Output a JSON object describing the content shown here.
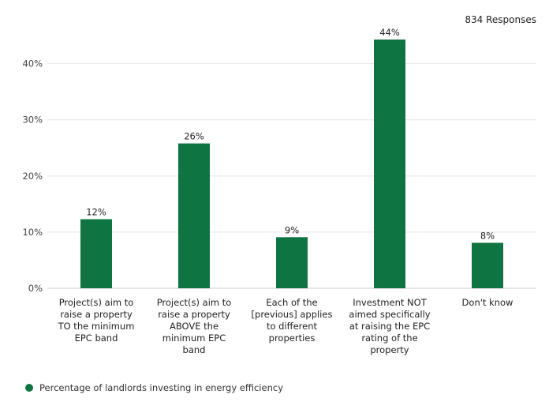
{
  "header": {
    "responses": "834 Responses"
  },
  "colors": {
    "bar": "#0e7441",
    "grid": "#e6e6e6",
    "text": "#222222"
  },
  "chart_data": {
    "type": "bar",
    "categories": [
      [
        "Project(s) aim to",
        "raise a property",
        "TO the minimum",
        "EPC band"
      ],
      [
        "Project(s) aim to",
        "raise a property",
        "ABOVE the",
        "minimum EPC",
        "band"
      ],
      [
        "Each of the",
        "[previous] applies",
        "to different",
        "properties"
      ],
      [
        "Investment NOT",
        "aimed specifically",
        "at raising the EPC",
        "rating of the",
        "property"
      ],
      [
        "Don't know"
      ]
    ],
    "series": [
      {
        "name": "Percentage of landlords investing in energy efficiency",
        "values": [
          12.3,
          25.8,
          9.1,
          44.3,
          8.1
        ]
      }
    ],
    "data_labels": [
      "12%",
      "26%",
      "9%",
      "44%",
      "8%"
    ],
    "yticks": [
      0,
      10,
      20,
      30,
      40
    ],
    "ytick_labels": [
      "0%",
      "10%",
      "20%",
      "30%",
      "40%"
    ],
    "ylim": [
      0,
      46
    ],
    "grid": true,
    "legend_position": "bottom-left"
  },
  "legend": {
    "label": "Percentage of landlords investing in energy efficiency"
  }
}
